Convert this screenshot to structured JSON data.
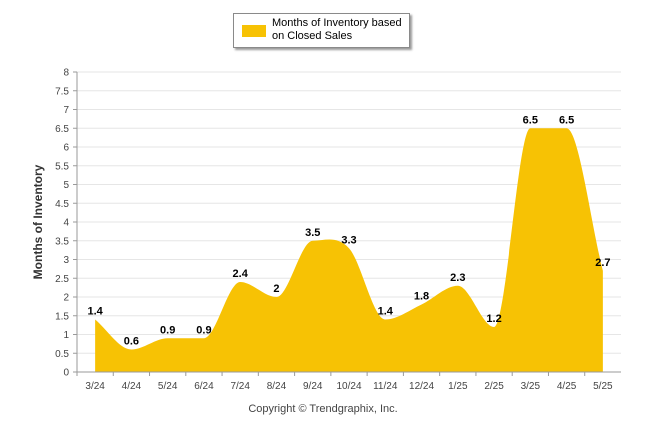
{
  "legend": {
    "label": "Months of Inventory based on Closed Sales"
  },
  "copyright": "Copyright © Trendgraphix, Inc.",
  "colors": {
    "series": "#f7c204",
    "grid": "#e6e6e6",
    "axis": "#9a9a9a"
  },
  "chart_data": {
    "type": "area",
    "title": "",
    "xlabel": "",
    "ylabel": "Months of Inventory",
    "categories": [
      "3/24",
      "4/24",
      "5/24",
      "6/24",
      "7/24",
      "8/24",
      "9/24",
      "10/24",
      "11/24",
      "12/24",
      "1/25",
      "2/25",
      "3/25",
      "4/25",
      "5/25"
    ],
    "series": [
      {
        "name": "Months of Inventory based on Closed Sales",
        "values": [
          1.4,
          0.6,
          0.9,
          0.9,
          2.4,
          2,
          3.5,
          3.3,
          1.4,
          1.8,
          2.3,
          1.2,
          6.5,
          6.5,
          2.7
        ]
      }
    ],
    "ylim": [
      0,
      8
    ],
    "yticks": [
      "0",
      "0.5",
      "1",
      "1.5",
      "2",
      "2.5",
      "3",
      "3.5",
      "4",
      "4.5",
      "5",
      "5.5",
      "6",
      "6.5",
      "7",
      "7.5",
      "8"
    ],
    "grid": true,
    "legend_position": "top-center",
    "smooth": true
  }
}
